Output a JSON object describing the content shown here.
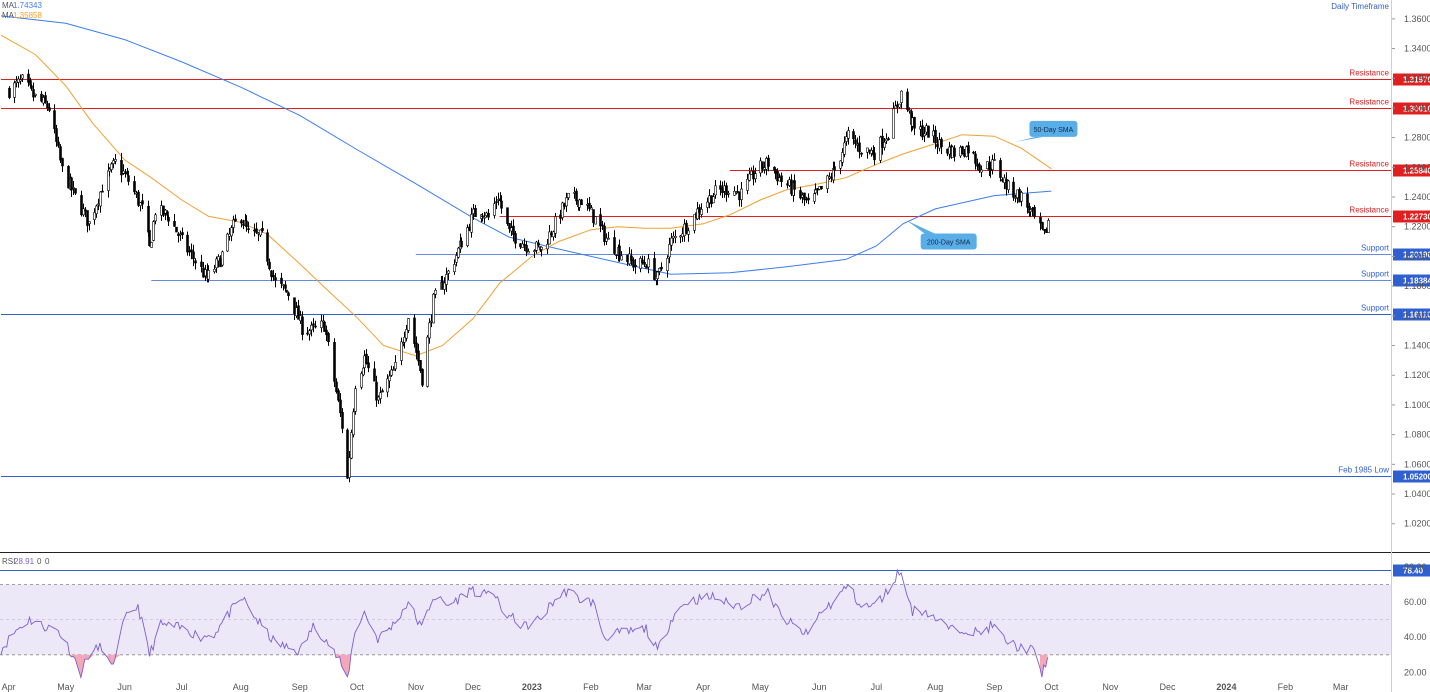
{
  "header": {
    "ma1_label": "MA",
    "ma1_value": "1.74343",
    "ma2_label": "MA",
    "ma2_value": "1.35858",
    "timeframe": "Daily Timeframe"
  },
  "rsi_header": {
    "label": "RSI",
    "value": "28.91",
    "p1": "0",
    "p2": "0"
  },
  "colors": {
    "candle": "#000000",
    "sma200": "#3d7ef0",
    "sma50": "#f0a030",
    "resistance": "#e02020",
    "support": "#3060d0",
    "rsi_line": "#7b5fd0",
    "rsi_band": "#ece8f8",
    "oversold_fill": "#f2a8b8",
    "callout": "#5aaee8"
  },
  "chart_data": {
    "type": "line",
    "title": "",
    "description_timeframe": "Daily Timeframe",
    "ylim": [
      1.005,
      1.37
    ],
    "y_ticks": [
      "1.36000",
      "1.34000",
      "1.32000",
      "1.30000",
      "1.28000",
      "1.26000",
      "1.24000",
      "1.22000",
      "1.20000",
      "1.18000",
      "1.16000",
      "1.14000",
      "1.12000",
      "1.10000",
      "1.08000",
      "1.06000",
      "1.04000",
      "1.02000"
    ],
    "x_ticks": [
      "Apr",
      "May",
      "Jun",
      "Jul",
      "Aug",
      "Sep",
      "Oct",
      "Nov",
      "Dec",
      "2023",
      "Feb",
      "Mar",
      "Apr",
      "May",
      "Jun",
      "Jul",
      "Aug",
      "Sep",
      "Oct",
      "Nov",
      "Dec",
      "2024",
      "Feb",
      "Mar"
    ],
    "price_path": [
      [
        "2022-04-01",
        1.312
      ],
      [
        "2022-04-08",
        1.318
      ],
      [
        "2022-04-14",
        1.308
      ],
      [
        "2022-04-22",
        1.3
      ],
      [
        "2022-04-29",
        1.258
      ],
      [
        "2022-05-06",
        1.24
      ],
      [
        "2022-05-13",
        1.222
      ],
      [
        "2022-05-20",
        1.247
      ],
      [
        "2022-05-27",
        1.263
      ],
      [
        "2022-06-03",
        1.251
      ],
      [
        "2022-06-10",
        1.232
      ],
      [
        "2022-06-14",
        1.205
      ],
      [
        "2022-06-17",
        1.231
      ],
      [
        "2022-06-24",
        1.227
      ],
      [
        "2022-07-01",
        1.21
      ],
      [
        "2022-07-07",
        1.199
      ],
      [
        "2022-07-14",
        1.185
      ],
      [
        "2022-07-21",
        1.198
      ],
      [
        "2022-07-28",
        1.22
      ],
      [
        "2022-08-01",
        1.227
      ],
      [
        "2022-08-05",
        1.215
      ],
      [
        "2022-08-12",
        1.213
      ],
      [
        "2022-08-19",
        1.182
      ],
      [
        "2022-08-26",
        1.175
      ],
      [
        "2022-09-02",
        1.152
      ],
      [
        "2022-09-07",
        1.15
      ],
      [
        "2022-09-14",
        1.154
      ],
      [
        "2022-09-23",
        1.086
      ],
      [
        "2022-09-26",
        1.05
      ],
      [
        "2022-09-30",
        1.115
      ],
      [
        "2022-10-05",
        1.132
      ],
      [
        "2022-10-12",
        1.103
      ],
      [
        "2022-10-21",
        1.125
      ],
      [
        "2022-10-28",
        1.16
      ],
      [
        "2022-11-04",
        1.118
      ],
      [
        "2022-11-10",
        1.17
      ],
      [
        "2022-11-18",
        1.189
      ],
      [
        "2022-11-25",
        1.21
      ],
      [
        "2022-12-01",
        1.228
      ],
      [
        "2022-12-05",
        1.232
      ],
      [
        "2022-12-09",
        1.226
      ],
      [
        "2022-12-14",
        1.241
      ],
      [
        "2022-12-20",
        1.216
      ],
      [
        "2022-12-30",
        1.207
      ],
      [
        "2023-01-06",
        1.205
      ],
      [
        "2023-01-13",
        1.222
      ],
      [
        "2023-01-20",
        1.239
      ],
      [
        "2023-01-27",
        1.238
      ],
      [
        "2023-02-03",
        1.225
      ],
      [
        "2023-02-10",
        1.21
      ],
      [
        "2023-02-17",
        1.202
      ],
      [
        "2023-02-24",
        1.194
      ],
      [
        "2023-03-02",
        1.196
      ],
      [
        "2023-03-08",
        1.185
      ],
      [
        "2023-03-15",
        1.21
      ],
      [
        "2023-03-24",
        1.222
      ],
      [
        "2023-03-31",
        1.234
      ],
      [
        "2023-04-07",
        1.243
      ],
      [
        "2023-04-14",
        1.246
      ],
      [
        "2023-04-21",
        1.242
      ],
      [
        "2023-04-28",
        1.257
      ],
      [
        "2023-05-05",
        1.263
      ],
      [
        "2023-05-12",
        1.251
      ],
      [
        "2023-05-19",
        1.244
      ],
      [
        "2023-05-26",
        1.235
      ],
      [
        "2023-06-02",
        1.245
      ],
      [
        "2023-06-09",
        1.258
      ],
      [
        "2023-06-16",
        1.281
      ],
      [
        "2023-06-23",
        1.272
      ],
      [
        "2023-06-30",
        1.27
      ],
      [
        "2023-07-07",
        1.284
      ],
      [
        "2023-07-14",
        1.31
      ],
      [
        "2023-07-21",
        1.285
      ],
      [
        "2023-07-28",
        1.284
      ],
      [
        "2023-08-04",
        1.274
      ],
      [
        "2023-08-11",
        1.27
      ],
      [
        "2023-08-18",
        1.273
      ],
      [
        "2023-08-25",
        1.26
      ],
      [
        "2023-09-01",
        1.262
      ],
      [
        "2023-09-08",
        1.246
      ],
      [
        "2023-09-15",
        1.24
      ],
      [
        "2023-09-22",
        1.225
      ],
      [
        "2023-09-27",
        1.213
      ],
      [
        "2023-09-29",
        1.224
      ]
    ],
    "series": [
      {
        "name": "200-Day SMA",
        "points": [
          [
            "2022-03-28",
            1.362
          ],
          [
            "2022-05-01",
            1.357
          ],
          [
            "2022-06-01",
            1.346
          ],
          [
            "2022-07-01",
            1.331
          ],
          [
            "2022-08-01",
            1.314
          ],
          [
            "2022-09-01",
            1.295
          ],
          [
            "2022-10-01",
            1.272
          ],
          [
            "2022-11-01",
            1.249
          ],
          [
            "2022-12-01",
            1.226
          ],
          [
            "2022-12-20",
            1.213
          ],
          [
            "2023-01-15",
            1.205
          ],
          [
            "2023-02-15",
            1.196
          ],
          [
            "2023-03-15",
            1.188
          ],
          [
            "2023-04-15",
            1.189
          ],
          [
            "2023-05-15",
            1.193
          ],
          [
            "2023-06-15",
            1.198
          ],
          [
            "2023-07-01",
            1.207
          ],
          [
            "2023-07-15",
            1.222
          ],
          [
            "2023-08-01",
            1.232
          ],
          [
            "2023-09-01",
            1.241
          ],
          [
            "2023-10-01",
            1.244
          ]
        ]
      },
      {
        "name": "50-Day SMA",
        "points": [
          [
            "2022-03-28",
            1.349
          ],
          [
            "2022-04-15",
            1.336
          ],
          [
            "2022-05-01",
            1.315
          ],
          [
            "2022-05-15",
            1.29
          ],
          [
            "2022-06-01",
            1.265
          ],
          [
            "2022-06-15",
            1.253
          ],
          [
            "2022-07-01",
            1.238
          ],
          [
            "2022-07-15",
            1.227
          ],
          [
            "2022-08-01",
            1.223
          ],
          [
            "2022-08-15",
            1.215
          ],
          [
            "2022-09-01",
            1.195
          ],
          [
            "2022-09-15",
            1.178
          ],
          [
            "2022-10-01",
            1.159
          ],
          [
            "2022-10-15",
            1.14
          ],
          [
            "2022-11-01",
            1.133
          ],
          [
            "2022-11-15",
            1.14
          ],
          [
            "2022-12-01",
            1.158
          ],
          [
            "2022-12-15",
            1.182
          ],
          [
            "2023-01-01",
            1.2
          ],
          [
            "2023-01-15",
            1.21
          ],
          [
            "2023-02-01",
            1.218
          ],
          [
            "2023-02-15",
            1.22
          ],
          [
            "2023-03-01",
            1.219
          ],
          [
            "2023-03-15",
            1.219
          ],
          [
            "2023-04-01",
            1.222
          ],
          [
            "2023-04-15",
            1.228
          ],
          [
            "2023-05-01",
            1.238
          ],
          [
            "2023-05-15",
            1.245
          ],
          [
            "2023-06-01",
            1.249
          ],
          [
            "2023-06-15",
            1.253
          ],
          [
            "2023-07-01",
            1.262
          ],
          [
            "2023-07-15",
            1.269
          ],
          [
            "2023-08-01",
            1.276
          ],
          [
            "2023-08-15",
            1.282
          ],
          [
            "2023-09-01",
            1.281
          ],
          [
            "2023-09-15",
            1.273
          ],
          [
            "2023-10-01",
            1.259
          ]
        ]
      }
    ],
    "levels": [
      {
        "kind": "resistance",
        "label": "Resistance",
        "price": 1.3197,
        "tag": "1.31970",
        "from": "2022-03-28"
      },
      {
        "kind": "resistance",
        "label": "Resistance",
        "price": 1.3001,
        "tag": "1.30010",
        "from": "2022-03-28"
      },
      {
        "kind": "resistance",
        "label": "Resistance",
        "price": 1.2584,
        "tag": "1.25840",
        "from": "2023-04-15"
      },
      {
        "kind": "resistance",
        "label": "Resistance",
        "price": 1.2273,
        "tag": "1.22730",
        "from": "2022-12-15"
      },
      {
        "kind": "support",
        "label": "Support",
        "price": 1.2019,
        "tag": "1.20190",
        "from": "2022-11-01"
      },
      {
        "kind": "support",
        "label": "Support",
        "price": 1.1838,
        "tag": "1.18384",
        "from": "2022-06-15"
      },
      {
        "kind": "support",
        "label": "Support",
        "price": 1.1611,
        "tag": "1.16110",
        "from": "2022-03-28"
      },
      {
        "kind": "support",
        "label": "Feb 1985 Low",
        "price": 1.052,
        "tag": "1.05200",
        "from": "2022-03-28"
      }
    ],
    "annotations": [
      {
        "text": "50-Day SMA",
        "date": "2023-09-10",
        "value": 1.2805
      },
      {
        "text": "200-Day SMA",
        "date": "2023-07-18",
        "value": 1.2235
      }
    ],
    "rsi": {
      "ylim": [
        10,
        85
      ],
      "y_ticks": [
        "80.00",
        "60.00",
        "40.00",
        "20.00"
      ],
      "tick_values": [
        80,
        60,
        40,
        20
      ],
      "overbought": 70,
      "mid": 50,
      "oversold": 30,
      "marker": 78.4,
      "marker_tag": "78.40",
      "points": [
        [
          "2022-03-28",
          33
        ],
        [
          "2022-04-05",
          44
        ],
        [
          "2022-04-12",
          50
        ],
        [
          "2022-04-20",
          46
        ],
        [
          "2022-04-27",
          44
        ],
        [
          "2022-05-02",
          35
        ],
        [
          "2022-05-09",
          20
        ],
        [
          "2022-05-13",
          30
        ],
        [
          "2022-05-20",
          35
        ],
        [
          "2022-05-25",
          22
        ],
        [
          "2022-06-01",
          50
        ],
        [
          "2022-06-08",
          58
        ],
        [
          "2022-06-14",
          30
        ],
        [
          "2022-06-20",
          47
        ],
        [
          "2022-06-27",
          46
        ],
        [
          "2022-07-04",
          44
        ],
        [
          "2022-07-11",
          40
        ],
        [
          "2022-07-18",
          42
        ],
        [
          "2022-07-27",
          55
        ],
        [
          "2022-08-02",
          62
        ],
        [
          "2022-08-10",
          49
        ],
        [
          "2022-08-18",
          38
        ],
        [
          "2022-08-25",
          34
        ],
        [
          "2022-09-01",
          32
        ],
        [
          "2022-09-08",
          46
        ],
        [
          "2022-09-14",
          40
        ],
        [
          "2022-09-22",
          26
        ],
        [
          "2022-09-26",
          16
        ],
        [
          "2022-09-30",
          44
        ],
        [
          "2022-10-05",
          54
        ],
        [
          "2022-10-12",
          39
        ],
        [
          "2022-10-20",
          47
        ],
        [
          "2022-10-28",
          60
        ],
        [
          "2022-11-04",
          45
        ],
        [
          "2022-11-10",
          63
        ],
        [
          "2022-11-18",
          58
        ],
        [
          "2022-11-25",
          63
        ],
        [
          "2022-12-01",
          68
        ],
        [
          "2022-12-05",
          61
        ],
        [
          "2022-12-10",
          70
        ],
        [
          "2022-12-16",
          55
        ],
        [
          "2022-12-28",
          46
        ],
        [
          "2023-01-06",
          51
        ],
        [
          "2023-01-12",
          60
        ],
        [
          "2023-01-20",
          67
        ],
        [
          "2023-01-25",
          62
        ],
        [
          "2023-02-02",
          60
        ],
        [
          "2023-02-08",
          40
        ],
        [
          "2023-02-14",
          42
        ],
        [
          "2023-02-22",
          43
        ],
        [
          "2023-03-02",
          45
        ],
        [
          "2023-03-08",
          32
        ],
        [
          "2023-03-16",
          52
        ],
        [
          "2023-03-23",
          60
        ],
        [
          "2023-03-31",
          62
        ],
        [
          "2023-04-07",
          63
        ],
        [
          "2023-04-14",
          59
        ],
        [
          "2023-04-21",
          58
        ],
        [
          "2023-04-28",
          63
        ],
        [
          "2023-05-05",
          65
        ],
        [
          "2023-05-12",
          52
        ],
        [
          "2023-05-19",
          46
        ],
        [
          "2023-05-26",
          41
        ],
        [
          "2023-06-02",
          55
        ],
        [
          "2023-06-09",
          60
        ],
        [
          "2023-06-16",
          70
        ],
        [
          "2023-06-23",
          57
        ],
        [
          "2023-06-30",
          58
        ],
        [
          "2023-07-07",
          66
        ],
        [
          "2023-07-13",
          78
        ],
        [
          "2023-07-20",
          55
        ],
        [
          "2023-07-27",
          55
        ],
        [
          "2023-08-03",
          49
        ],
        [
          "2023-08-10",
          44
        ],
        [
          "2023-08-17",
          45
        ],
        [
          "2023-08-24",
          42
        ],
        [
          "2023-08-31",
          47
        ],
        [
          "2023-09-07",
          38
        ],
        [
          "2023-09-14",
          34
        ],
        [
          "2023-09-21",
          33
        ],
        [
          "2023-09-26",
          19
        ],
        [
          "2023-09-29",
          29
        ]
      ]
    }
  }
}
